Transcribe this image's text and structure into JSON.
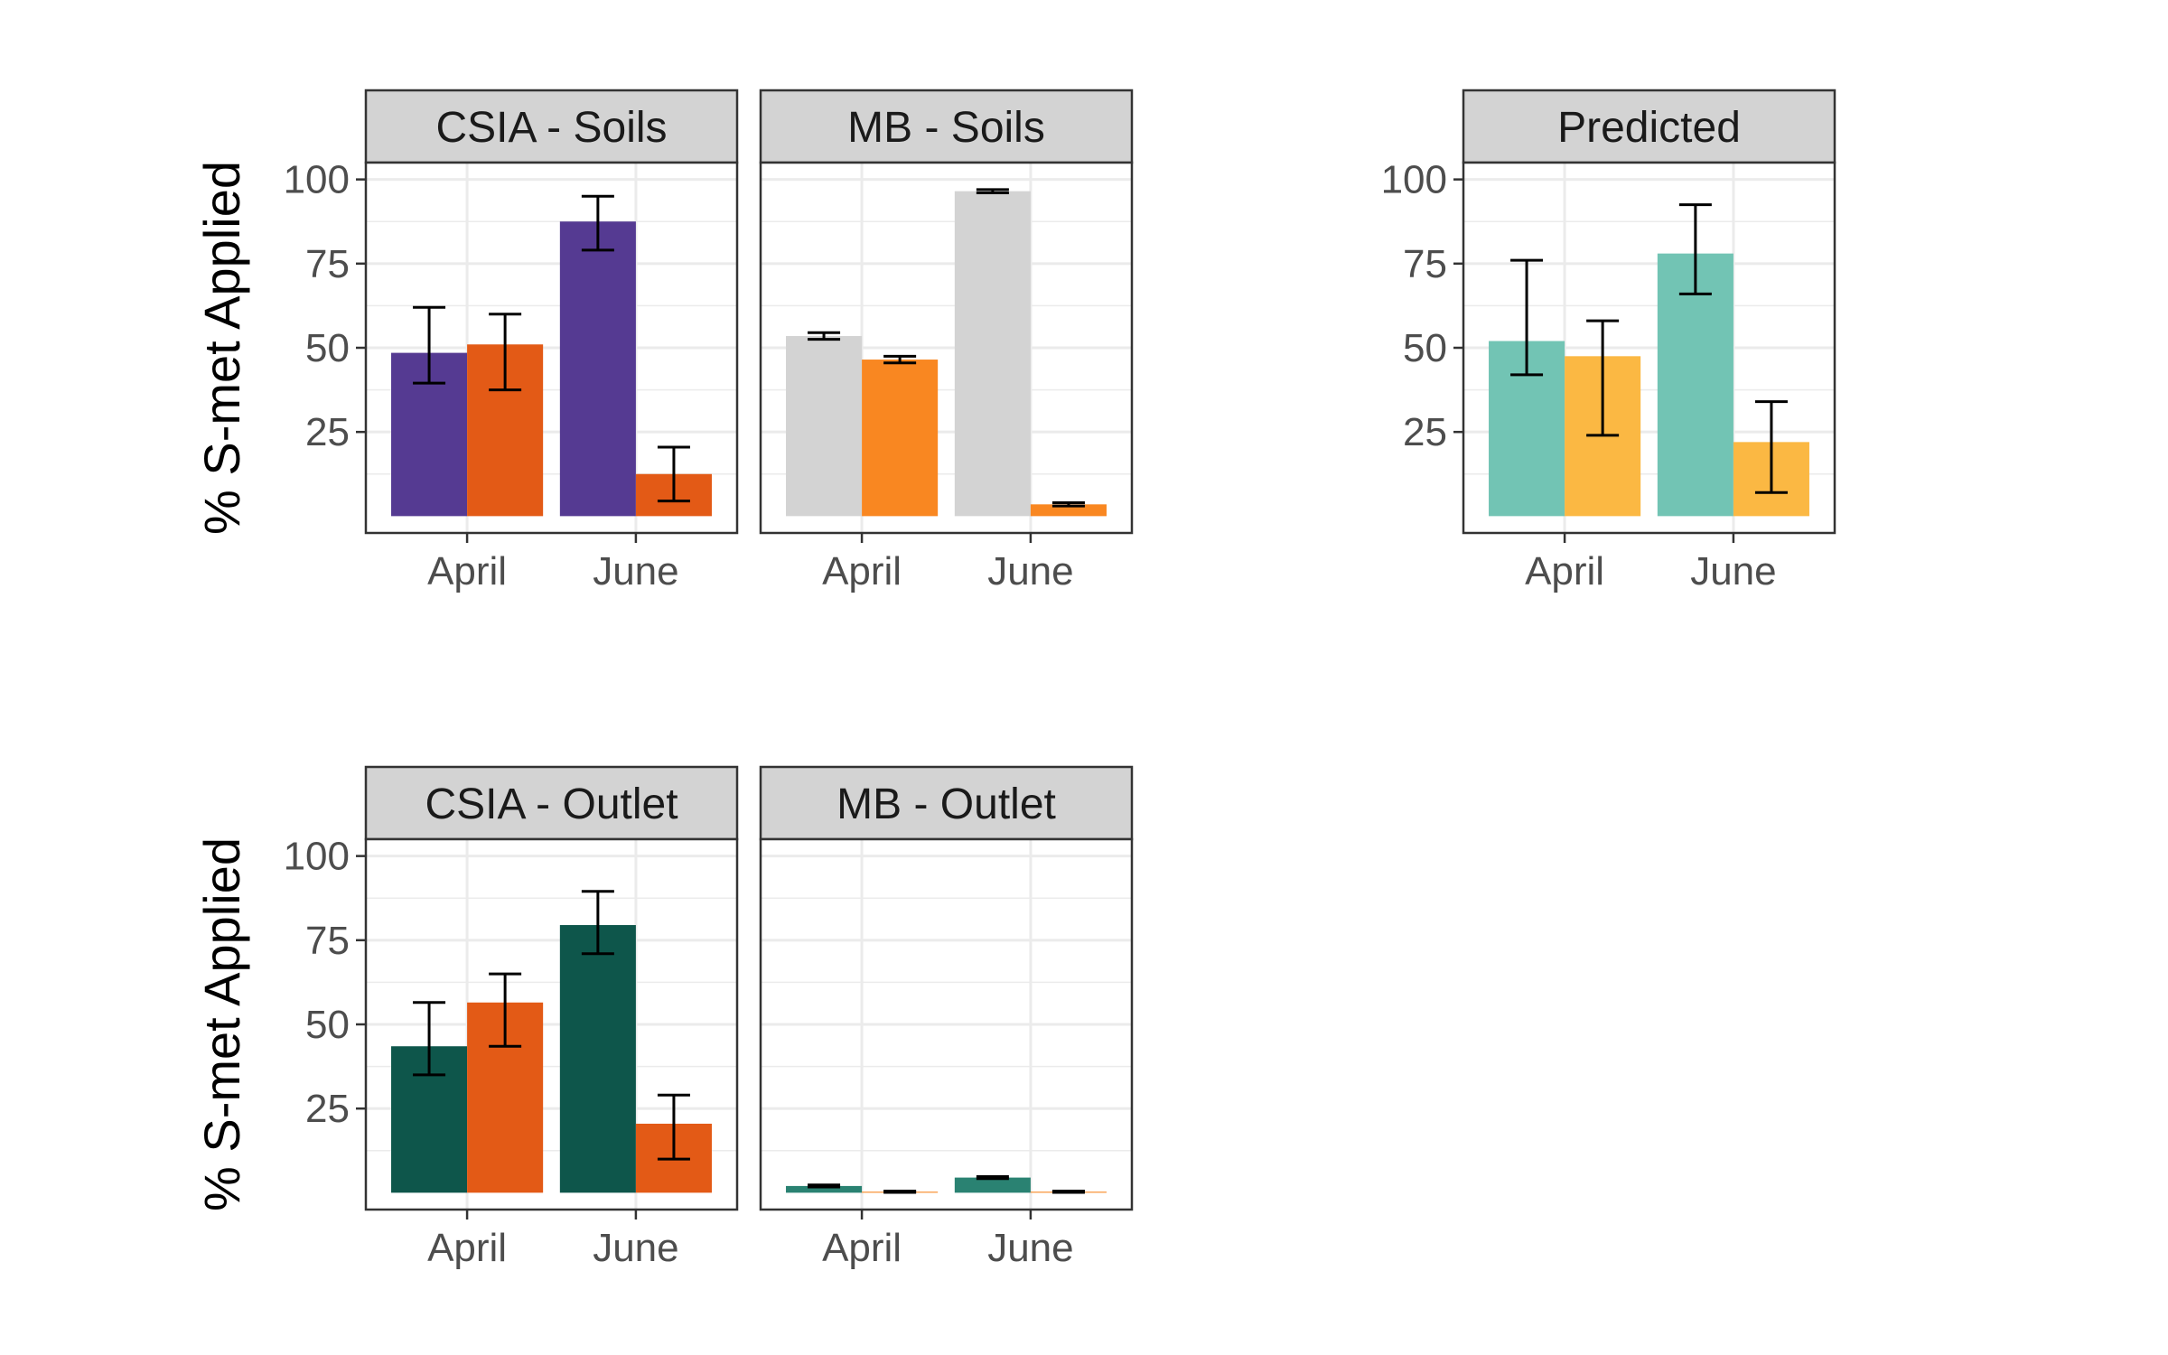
{
  "chart_data": [
    {
      "type": "bar",
      "title": "CSIA - Soils",
      "ylabel": "% S-met Applied",
      "categories": [
        "April",
        "June"
      ],
      "yticks": [
        25,
        50,
        75,
        100
      ],
      "ylim": [
        -5,
        105
      ],
      "grid": true,
      "colors": [
        "#553a92",
        "#e35a16"
      ],
      "series": [
        {
          "values": [
            48.5,
            87.5
          ],
          "err_low": [
            39.5,
            79
          ],
          "err_high": [
            62,
            95
          ]
        },
        {
          "values": [
            51,
            12.5
          ],
          "err_low": [
            37.5,
            4.5
          ],
          "err_high": [
            60,
            20.5
          ]
        }
      ]
    },
    {
      "type": "bar",
      "title": "MB - Soils",
      "ylabel": "",
      "categories": [
        "April",
        "June"
      ],
      "yticks": [
        25,
        50,
        75,
        100
      ],
      "ylim": [
        -5,
        105
      ],
      "grid": true,
      "colors": [
        "#d3d3d3",
        "#f98721"
      ],
      "series": [
        {
          "values": [
            53.5,
            96.5
          ],
          "err_low": [
            52.5,
            96
          ],
          "err_high": [
            54.5,
            97
          ]
        },
        {
          "values": [
            46.5,
            3.5
          ],
          "err_low": [
            45.5,
            3
          ],
          "err_high": [
            47.5,
            4
          ]
        }
      ]
    },
    {
      "type": "bar",
      "title": "Predicted",
      "ylabel": "",
      "categories": [
        "April",
        "June"
      ],
      "yticks": [
        25,
        50,
        75,
        100
      ],
      "ylim": [
        -5,
        105
      ],
      "grid": true,
      "colors": [
        "#72c4b4",
        "#fbb843"
      ],
      "series": [
        {
          "values": [
            52,
            78
          ],
          "err_low": [
            42,
            66
          ],
          "err_high": [
            76,
            92.5
          ]
        },
        {
          "values": [
            47.5,
            22
          ],
          "err_low": [
            24,
            7
          ],
          "err_high": [
            58,
            34
          ]
        }
      ]
    },
    {
      "type": "bar",
      "title": "CSIA - Outlet",
      "ylabel": "% S-met Applied",
      "categories": [
        "April",
        "June"
      ],
      "yticks": [
        25,
        50,
        75,
        100
      ],
      "ylim": [
        -5,
        105
      ],
      "grid": true,
      "colors": [
        "#0e564b",
        "#e35a16"
      ],
      "series": [
        {
          "values": [
            43.5,
            79.5
          ],
          "err_low": [
            35,
            71
          ],
          "err_high": [
            56.5,
            89.5
          ]
        },
        {
          "values": [
            56.5,
            20.5
          ],
          "err_low": [
            43.5,
            10
          ],
          "err_high": [
            65,
            29
          ]
        }
      ]
    },
    {
      "type": "bar",
      "title": "MB - Outlet",
      "ylabel": "",
      "categories": [
        "April",
        "June"
      ],
      "yticks": [
        25,
        50,
        75,
        100
      ],
      "ylim": [
        -5,
        105
      ],
      "grid": true,
      "colors": [
        "#2a8272",
        "#f98721"
      ],
      "series": [
        {
          "values": [
            2,
            4.5
          ],
          "err_low": [
            1.7,
            4.2
          ],
          "err_high": [
            2.3,
            4.8
          ]
        },
        {
          "values": [
            0.3,
            0.3
          ],
          "err_low": [
            0.1,
            0.1
          ],
          "err_high": [
            0.5,
            0.5
          ]
        }
      ]
    }
  ]
}
